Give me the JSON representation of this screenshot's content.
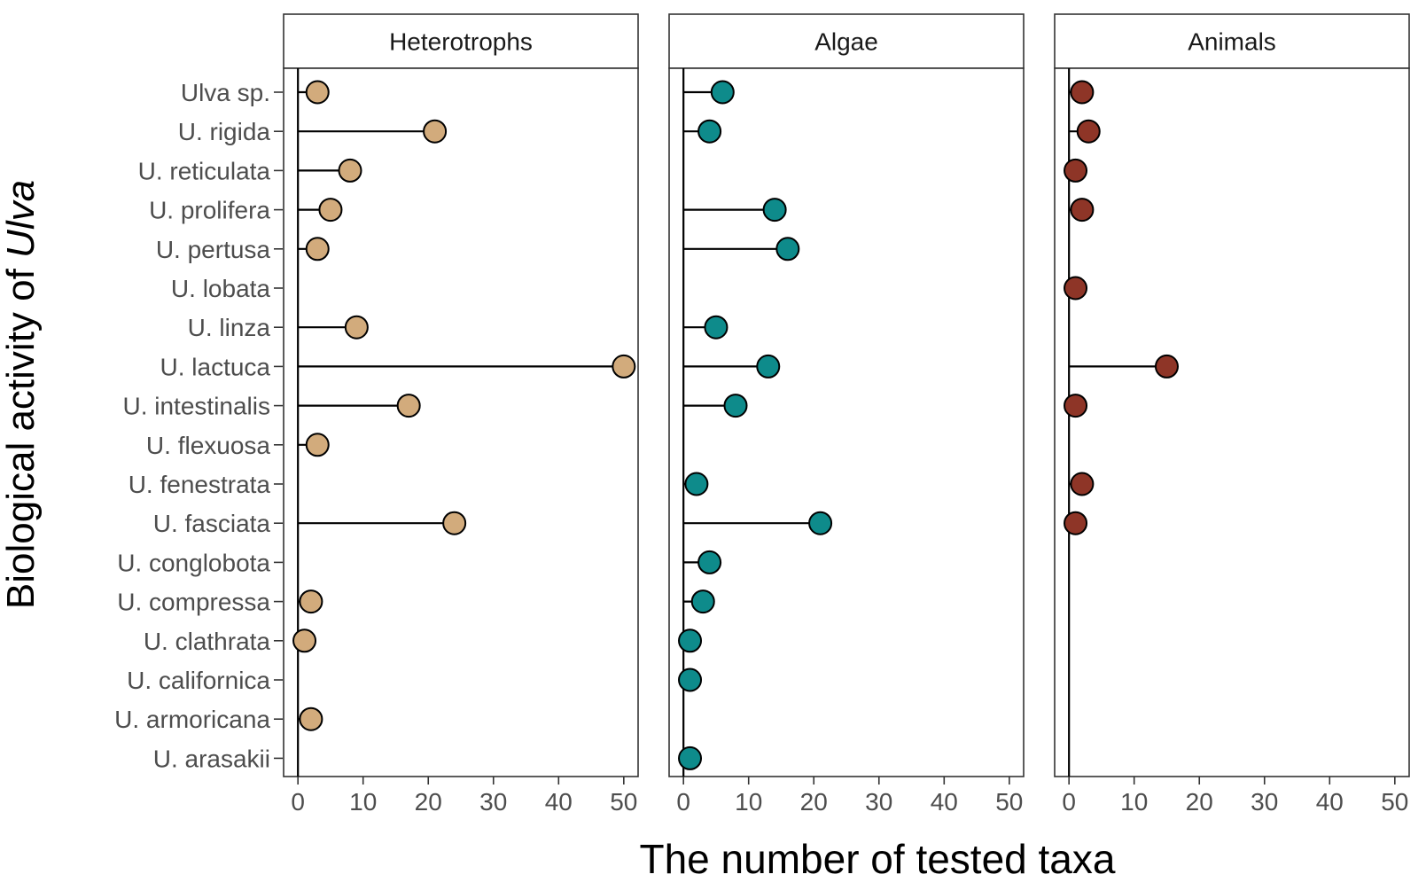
{
  "chart_data": {
    "type": "lollipop",
    "facets": [
      "Heterotrophs",
      "Algae",
      "Animals"
    ],
    "categories": [
      "Ulva sp.",
      "U. rigida",
      "U. reticulata",
      "U. prolifera",
      "U. pertusa",
      "U. lobata",
      "U. linza",
      "U. lactuca",
      "U. intestinalis",
      "U. flexuosa",
      "U. fenestrata",
      "U. fasciata",
      "U. conglobota",
      "U. compressa",
      "U. clathrata",
      "U. californica",
      "U. armoricana",
      "U. arasakii"
    ],
    "series": [
      {
        "name": "Heterotrophs",
        "color": "#D2AB7C",
        "values": [
          3,
          21,
          8,
          5,
          3,
          null,
          9,
          50,
          17,
          3,
          null,
          24,
          null,
          2,
          1,
          null,
          2,
          null
        ]
      },
      {
        "name": "Algae",
        "color": "#0E8B8B",
        "values": [
          6,
          4,
          null,
          14,
          16,
          null,
          5,
          13,
          8,
          null,
          2,
          21,
          4,
          3,
          1,
          1,
          null,
          1
        ]
      },
      {
        "name": "Animals",
        "color": "#8E3527",
        "values": [
          2,
          3,
          1,
          2,
          null,
          1,
          null,
          15,
          1,
          null,
          2,
          1,
          null,
          null,
          null,
          null,
          null,
          null
        ]
      }
    ],
    "xlabel": "The number of tested taxa",
    "ylabel_prefix": "Biological activity of ",
    "ylabel_italic": "Ulva",
    "xlim": [
      -2.2,
      52.2
    ],
    "xticks": [
      0,
      10,
      20,
      30,
      40,
      50
    ],
    "grid": false,
    "legend": "none"
  }
}
